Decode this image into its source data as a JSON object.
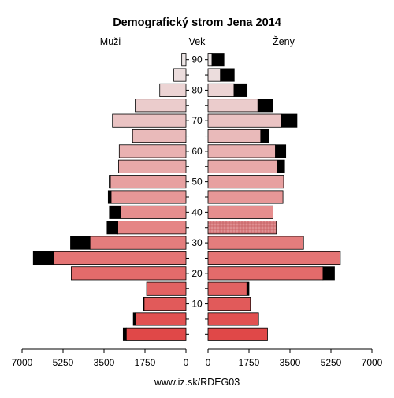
{
  "chart_data": {
    "type": "bar",
    "orientation": "horizontal-pyramid",
    "title": "Demografický strom Jena 2014",
    "left_label": "Muži",
    "center_label": "Vek",
    "right_label": "Ženy",
    "footer": "www.iz.sk/RDEG03",
    "age_groups": [
      "0-4",
      "5-9",
      "10-14",
      "15-19",
      "20-24",
      "25-29",
      "30-34",
      "35-39",
      "40-44",
      "45-49",
      "50-54",
      "55-59",
      "60-64",
      "65-69",
      "70-74",
      "75-79",
      "80-84",
      "85-89",
      "90+"
    ],
    "age_tick_labels": [
      "10",
      "20",
      "30",
      "40",
      "50",
      "60",
      "70",
      "80",
      "90"
    ],
    "x_tick_labels_left": [
      "7000",
      "5250",
      "3500",
      "1750",
      "0"
    ],
    "x_tick_labels_right": [
      "0",
      "1750",
      "3500",
      "5250",
      "7000"
    ],
    "xlim": [
      0,
      7000
    ],
    "men_base": [
      2550,
      2170,
      1790,
      1680,
      4900,
      5650,
      4100,
      2910,
      2780,
      3200,
      3230,
      2880,
      2850,
      2280,
      3140,
      2170,
      1120,
      520,
      180
    ],
    "men_excess": [
      130,
      80,
      40,
      0,
      0,
      870,
      830,
      460,
      490,
      120,
      50,
      0,
      0,
      0,
      0,
      0,
      0,
      0,
      0
    ],
    "women_base": [
      2540,
      2160,
      1810,
      1660,
      4910,
      5650,
      4080,
      2920,
      2780,
      3200,
      3230,
      2950,
      2880,
      2250,
      3130,
      2130,
      1110,
      530,
      170
    ],
    "women_excess": [
      0,
      0,
      0,
      90,
      490,
      0,
      0,
      0,
      0,
      0,
      0,
      320,
      440,
      350,
      670,
      620,
      560,
      590,
      510
    ],
    "colors": {
      "low_age": "#e04848",
      "high_age": "#ede6e6",
      "excess": "#000000",
      "stroke": "#000000",
      "women_35_39_pattern": "#cf6b6e"
    }
  }
}
